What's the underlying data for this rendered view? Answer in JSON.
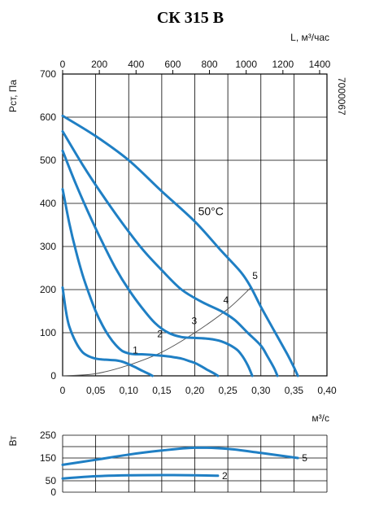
{
  "chart_data": {
    "type": "line",
    "title": "СК 315 В",
    "code": "7000067",
    "main": {
      "ylabel": "Pст, Па",
      "xlabel_bottom": "м³/с",
      "xlabel_top": "L, м³/час",
      "xlim": [
        0,
        0.4
      ],
      "ylim": [
        0,
        700
      ],
      "x_ticks": [
        "0",
        "0,05",
        "0,10",
        "0,15",
        "0,20",
        "0,25",
        "0,30",
        "0,35",
        "0,40"
      ],
      "x_top_ticks": [
        "0",
        "200",
        "400",
        "600",
        "800",
        "1000",
        "1200",
        "1400"
      ],
      "y_ticks": [
        "0",
        "100",
        "200",
        "300",
        "400",
        "500",
        "600",
        "700"
      ],
      "grid": true,
      "series": [
        {
          "name": "1",
          "points": [
            [
              0,
              205
            ],
            [
              0.005,
              150
            ],
            [
              0.01,
              115
            ],
            [
              0.02,
              78
            ],
            [
              0.03,
              55
            ],
            [
              0.04,
              45
            ],
            [
              0.05,
              40
            ],
            [
              0.06,
              38
            ],
            [
              0.07,
              37
            ],
            [
              0.08,
              36
            ],
            [
              0.09,
              33
            ],
            [
              0.1,
              27
            ],
            [
              0.11,
              20
            ],
            [
              0.12,
              12
            ],
            [
              0.13,
              5
            ],
            [
              0.136,
              0
            ]
          ]
        },
        {
          "name": "2",
          "points": [
            [
              0,
              433
            ],
            [
              0.01,
              355
            ],
            [
              0.02,
              290
            ],
            [
              0.03,
              235
            ],
            [
              0.04,
              190
            ],
            [
              0.05,
              150
            ],
            [
              0.06,
              118
            ],
            [
              0.07,
              92
            ],
            [
              0.08,
              72
            ],
            [
              0.09,
              58
            ],
            [
              0.1,
              52
            ],
            [
              0.11,
              50
            ],
            [
              0.12,
              50
            ],
            [
              0.14,
              48
            ],
            [
              0.16,
              45
            ],
            [
              0.18,
              40
            ],
            [
              0.19,
              35
            ],
            [
              0.2,
              30
            ],
            [
              0.21,
              22
            ],
            [
              0.22,
              13
            ],
            [
              0.23,
              5
            ],
            [
              0.235,
              0
            ]
          ]
        },
        {
          "name": "3",
          "points": [
            [
              0,
              522
            ],
            [
              0.02,
              445
            ],
            [
              0.04,
              375
            ],
            [
              0.06,
              310
            ],
            [
              0.08,
              250
            ],
            [
              0.1,
              200
            ],
            [
              0.12,
              158
            ],
            [
              0.14,
              122
            ],
            [
              0.16,
              100
            ],
            [
              0.18,
              90
            ],
            [
              0.2,
              88
            ],
            [
              0.22,
              86
            ],
            [
              0.24,
              80
            ],
            [
              0.26,
              65
            ],
            [
              0.27,
              50
            ],
            [
              0.28,
              25
            ],
            [
              0.287,
              0
            ]
          ]
        },
        {
          "name": "4",
          "points": [
            [
              0,
              567
            ],
            [
              0.03,
              490
            ],
            [
              0.06,
              420
            ],
            [
              0.09,
              355
            ],
            [
              0.12,
              295
            ],
            [
              0.15,
              245
            ],
            [
              0.18,
              200
            ],
            [
              0.21,
              172
            ],
            [
              0.24,
              150
            ],
            [
              0.26,
              130
            ],
            [
              0.28,
              100
            ],
            [
              0.3,
              70
            ],
            [
              0.31,
              45
            ],
            [
              0.32,
              18
            ],
            [
              0.325,
              0
            ]
          ]
        },
        {
          "name": "5",
          "points": [
            [
              0,
              603
            ],
            [
              0.05,
              556
            ],
            [
              0.1,
              500
            ],
            [
              0.15,
              428
            ],
            [
              0.2,
              358
            ],
            [
              0.24,
              290
            ],
            [
              0.27,
              240
            ],
            [
              0.285,
              205
            ],
            [
              0.3,
              160
            ],
            [
              0.32,
              105
            ],
            [
              0.34,
              50
            ],
            [
              0.35,
              20
            ],
            [
              0.356,
              0
            ]
          ]
        }
      ],
      "system_curve": [
        [
          0,
          0
        ],
        [
          0.05,
          5
        ],
        [
          0.1,
          25
        ],
        [
          0.15,
          55
        ],
        [
          0.2,
          100
        ],
        [
          0.25,
          155
        ],
        [
          0.285,
          205
        ]
      ],
      "annotations": [
        "50°C",
        "1",
        "2",
        "3",
        "4",
        "5"
      ]
    },
    "power": {
      "ylabel": "Вт",
      "ylim": [
        0,
        250
      ],
      "y_ticks": [
        "0",
        "50",
        "150",
        "250"
      ],
      "series": [
        {
          "name": "2",
          "points": [
            [
              0,
              60
            ],
            [
              0.05,
              70
            ],
            [
              0.1,
              74
            ],
            [
              0.15,
              75
            ],
            [
              0.2,
              74
            ],
            [
              0.235,
              72
            ]
          ]
        },
        {
          "name": "5",
          "points": [
            [
              0,
              120
            ],
            [
              0.05,
              142
            ],
            [
              0.1,
              165
            ],
            [
              0.15,
              183
            ],
            [
              0.2,
              195
            ],
            [
              0.25,
              190
            ],
            [
              0.3,
              172
            ],
            [
              0.356,
              150
            ]
          ]
        }
      ]
    }
  }
}
